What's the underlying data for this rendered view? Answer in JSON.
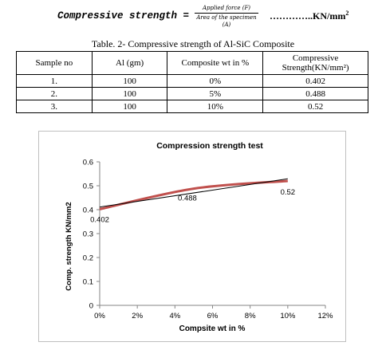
{
  "formula": {
    "lhs": "Compressive strength =",
    "numerator": "Applied force (F)",
    "denominator": "Area of the specimen (A)",
    "unit_prefix": "…………..KN/mm",
    "unit_sup": "2"
  },
  "table": {
    "caption": "Table. 2- Compressive strength of Al-SiC Composite",
    "headers": [
      "Sample no",
      "Al (gm)",
      "Composite wt in %",
      "Compressive Strength(KN/mm²)"
    ],
    "rows": [
      [
        "1.",
        "100",
        "0%",
        "0.402"
      ],
      [
        "2.",
        "100",
        "5%",
        "0.488"
      ],
      [
        "3.",
        "100",
        "10%",
        "0.52"
      ]
    ]
  },
  "chart_data": {
    "type": "line",
    "title": "Compression strength test",
    "xlabel": "Compsite wt in %",
    "ylabel": "Comp. strength KN/mm2",
    "x": [
      0,
      5,
      10
    ],
    "series": [
      {
        "values": [
          0.402,
          0.488,
          0.52
        ],
        "color": "#c0504d"
      }
    ],
    "trendline": {
      "type": "linear",
      "color": "#000000"
    },
    "data_labels": [
      "0.402",
      "0.488",
      "0.52"
    ],
    "xlim": [
      0,
      12
    ],
    "ylim": [
      0,
      0.6
    ],
    "xticks": [
      "0%",
      "2%",
      "4%",
      "6%",
      "8%",
      "10%",
      "12%"
    ],
    "yticks": [
      "0",
      "0.1",
      "0.2",
      "0.3",
      "0.4",
      "0.5",
      "0.6"
    ],
    "grid": false
  }
}
